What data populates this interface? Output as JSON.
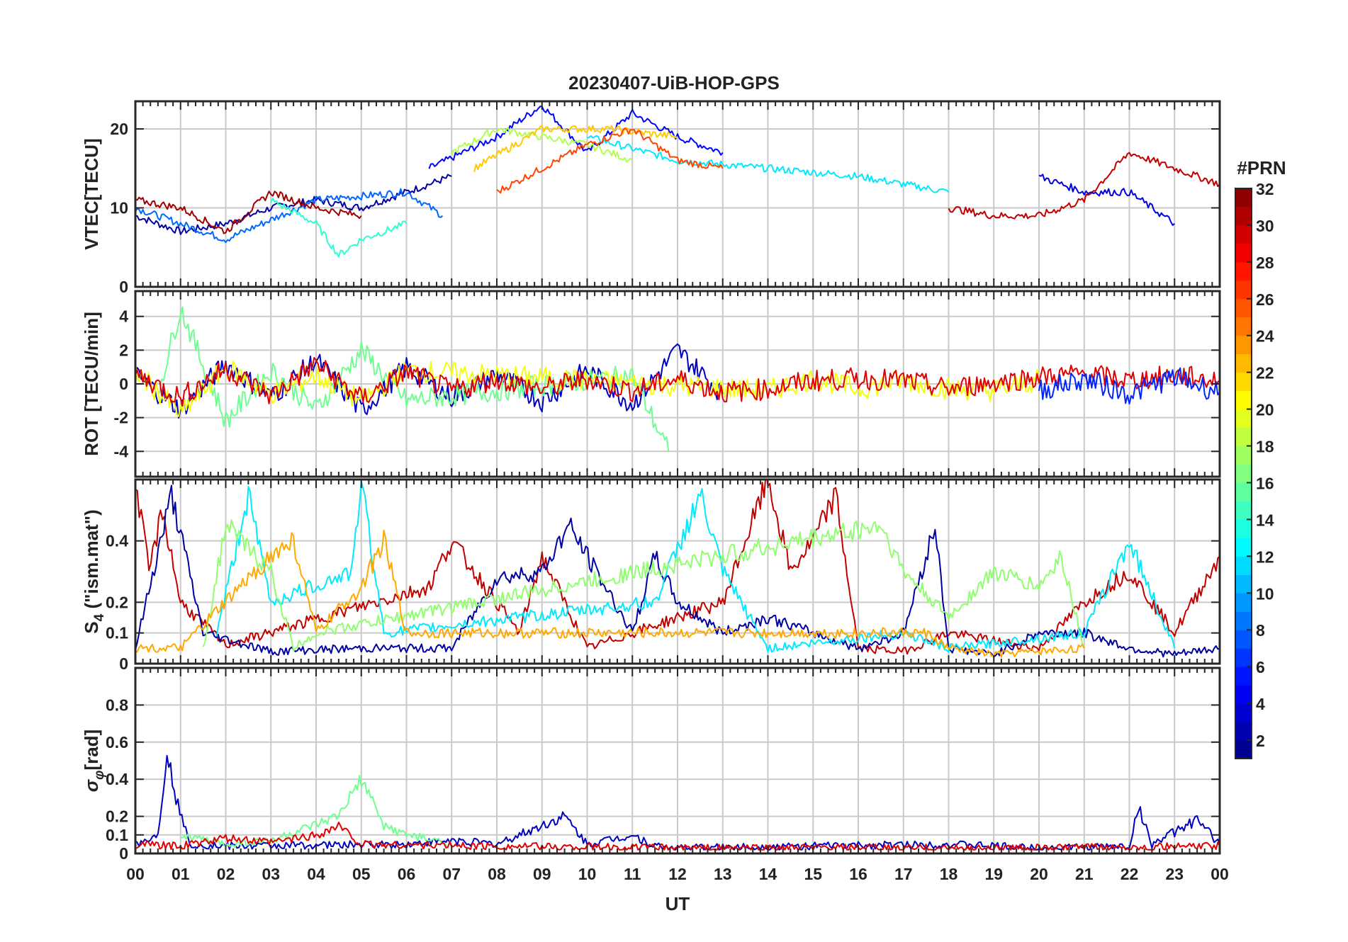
{
  "title": "20230407-UiB-HOP-GPS",
  "colorbar": {
    "title": "#PRN",
    "ticks": [
      "2",
      "4",
      "6",
      "8",
      "10",
      "12",
      "14",
      "16",
      "18",
      "20",
      "22",
      "24",
      "26",
      "28",
      "30",
      "32"
    ],
    "range": [
      1,
      32
    ],
    "colormap": "jet"
  },
  "x_axis": {
    "label": "UT",
    "ticks": [
      "00",
      "01",
      "02",
      "03",
      "04",
      "05",
      "06",
      "07",
      "08",
      "09",
      "10",
      "11",
      "12",
      "13",
      "14",
      "15",
      "16",
      "17",
      "18",
      "19",
      "20",
      "21",
      "22",
      "23",
      "00"
    ],
    "range_hours": [
      0,
      24
    ]
  },
  "chart_data": [
    {
      "type": "line",
      "panel": "vtec",
      "ylabel": "VTEC[TECU]",
      "ylim": [
        0,
        23.5
      ],
      "yticks": [
        "0",
        "10",
        "20"
      ],
      "ytick_values": [
        0,
        10,
        20
      ],
      "series_by": "PRN",
      "series": [
        {
          "prn": 2,
          "x": [
            0,
            1,
            2,
            3,
            4,
            5,
            6,
            7
          ],
          "values": [
            9,
            7,
            8,
            10,
            11,
            10,
            12,
            14
          ]
        },
        {
          "prn": 5,
          "x": [
            6.5,
            8,
            9,
            10,
            11,
            12,
            13
          ],
          "values": [
            15,
            19,
            23,
            17,
            22,
            19,
            17
          ]
        },
        {
          "prn": 8,
          "x": [
            0,
            2,
            4,
            6,
            6.8
          ],
          "values": [
            10,
            6,
            11,
            12,
            9
          ]
        },
        {
          "prn": 12,
          "x": [
            10,
            12,
            14,
            16,
            18
          ],
          "values": [
            19,
            16,
            15,
            14,
            12
          ]
        },
        {
          "prn": 14,
          "x": [
            3,
            4,
            4.5,
            5,
            6
          ],
          "values": [
            11,
            8,
            4,
            6,
            8
          ]
        },
        {
          "prn": 18,
          "x": [
            7,
            8,
            9,
            10,
            11
          ],
          "values": [
            17,
            20,
            19,
            18,
            16
          ]
        },
        {
          "prn": 22,
          "x": [
            7.5,
            9,
            10.5,
            12
          ],
          "values": [
            15,
            20,
            20,
            19
          ]
        },
        {
          "prn": 26,
          "x": [
            8,
            9,
            10,
            11,
            12,
            13
          ],
          "values": [
            12,
            15,
            18,
            20,
            16,
            15
          ]
        },
        {
          "prn": 31,
          "x": [
            0,
            1,
            2,
            3,
            4,
            5
          ],
          "values": [
            11,
            10,
            7,
            12,
            10,
            9
          ]
        },
        {
          "prn": 30,
          "x": [
            18,
            19,
            20,
            21,
            22,
            22.5,
            23,
            24
          ],
          "values": [
            10,
            9,
            9,
            11,
            17,
            16,
            15,
            13
          ]
        },
        {
          "prn": 4,
          "x": [
            20,
            21,
            22,
            22.5,
            23
          ],
          "values": [
            14,
            12,
            12,
            10,
            8
          ]
        }
      ]
    },
    {
      "type": "line",
      "panel": "rot",
      "ylabel": "ROT [TECU/min]",
      "ylim": [
        -5.5,
        5.5
      ],
      "yticks": [
        "-4",
        "-2",
        "0",
        "2",
        "4"
      ],
      "ytick_values": [
        -4,
        -2,
        0,
        2,
        4
      ],
      "series_by": "PRN",
      "series": [
        {
          "prn": 3,
          "x": [
            0,
            1,
            2,
            3,
            4,
            5,
            6,
            7,
            8,
            9,
            10,
            11,
            12,
            13
          ],
          "values": [
            0.5,
            -1.5,
            1.2,
            -0.8,
            1.4,
            -1.6,
            1.0,
            -0.8,
            0.6,
            -1.0,
            0.8,
            -1.2,
            2.0,
            -0.6
          ]
        },
        {
          "prn": 16,
          "x": [
            0.5,
            1,
            2,
            3,
            4,
            5,
            6,
            11,
            11.8
          ],
          "values": [
            -0.5,
            4.5,
            -2.2,
            0.8,
            -1.5,
            2.0,
            -1.0,
            0.5,
            -4.0
          ]
        },
        {
          "prn": 20,
          "x": [
            0,
            1,
            2,
            3,
            4,
            5,
            6,
            14,
            15,
            16,
            17,
            18,
            19,
            20
          ],
          "values": [
            0.8,
            -1.8,
            1.0,
            -0.6,
            0.5,
            -1.0,
            0.8,
            -0.4,
            0.3,
            -0.3,
            0.2,
            -0.3,
            -0.4,
            0.2
          ]
        },
        {
          "prn": 29,
          "x": [
            0,
            1,
            2,
            3,
            4,
            5,
            6,
            7,
            8,
            9,
            10,
            11,
            12,
            13,
            14,
            15,
            16,
            17,
            18,
            19,
            20,
            21,
            22,
            23,
            24
          ],
          "values": [
            0.6,
            -0.8,
            0.9,
            -0.7,
            1.2,
            -0.9,
            0.7,
            -0.4,
            0.3,
            -0.3,
            0.3,
            -0.4,
            0.3,
            -0.5,
            -0.3,
            0.2,
            0.3,
            0.2,
            -0.3,
            0.1,
            0.4,
            0.6,
            0.2,
            0.5,
            0.2
          ]
        },
        {
          "prn": 6,
          "x": [
            20,
            21,
            22,
            23,
            24
          ],
          "values": [
            -0.4,
            0.3,
            -0.6,
            0.4,
            -0.5
          ]
        }
      ]
    },
    {
      "type": "line",
      "panel": "s4",
      "ylabel": "S4 (\"ism.mat\")",
      "ylabel_main": "S",
      "ylabel_sub": "4",
      "ylabel_rest": " (\"ism.mat\")",
      "ylim": [
        0,
        0.6
      ],
      "yticks": [
        "0",
        "0.1",
        "0.2",
        "0.4"
      ],
      "ytick_values": [
        0,
        0.1,
        0.2,
        0.4
      ],
      "series_by": "PRN",
      "series": [
        {
          "prn": 30,
          "x": [
            0,
            0.3,
            0.6,
            1,
            2,
            6.5,
            7,
            8.5,
            9,
            10,
            11,
            13,
            14,
            14.5,
            15,
            15.5,
            16,
            17,
            18,
            20,
            21,
            22,
            23,
            24
          ],
          "values": [
            0.6,
            0.3,
            0.5,
            0.2,
            0.06,
            0.25,
            0.4,
            0.1,
            0.35,
            0.05,
            0.1,
            0.2,
            0.6,
            0.3,
            0.4,
            0.55,
            0.05,
            0.04,
            0.1,
            0.05,
            0.2,
            0.3,
            0.1,
            0.35
          ]
        },
        {
          "prn": 2,
          "x": [
            0,
            0.8,
            1.5,
            3,
            5,
            7,
            8,
            9,
            9.6,
            11,
            11.5,
            12,
            13,
            14,
            15,
            16,
            17,
            17.7,
            18,
            19,
            20,
            21,
            22,
            23,
            24
          ],
          "values": [
            0.05,
            0.55,
            0.1,
            0.04,
            0.05,
            0.05,
            0.28,
            0.3,
            0.45,
            0.1,
            0.35,
            0.2,
            0.1,
            0.15,
            0.1,
            0.05,
            0.1,
            0.45,
            0.05,
            0.03,
            0.1,
            0.1,
            0.05,
            0.03,
            0.05
          ]
        },
        {
          "prn": 12,
          "x": [
            1.8,
            2.5,
            3,
            4.8,
            5,
            5.5,
            11.5,
            12.5,
            13,
            14,
            17,
            18,
            21,
            22,
            23
          ],
          "values": [
            0.1,
            0.55,
            0.2,
            0.3,
            0.6,
            0.1,
            0.2,
            0.55,
            0.3,
            0.05,
            0.1,
            0.05,
            0.1,
            0.4,
            0.05
          ]
        },
        {
          "prn": 17,
          "x": [
            1.5,
            2,
            3,
            3.5,
            4,
            16.5,
            17,
            18,
            19,
            20,
            20.5,
            21
          ],
          "values": [
            0.05,
            0.45,
            0.3,
            0.05,
            0.1,
            0.45,
            0.3,
            0.15,
            0.3,
            0.25,
            0.35,
            0.05
          ]
        },
        {
          "prn": 23,
          "x": [
            0,
            1,
            3,
            3.5,
            4,
            5,
            5.5,
            6,
            17.5,
            18,
            19,
            20,
            21
          ],
          "values": [
            0.05,
            0.05,
            0.35,
            0.4,
            0.1,
            0.25,
            0.4,
            0.1,
            0.1,
            0.05,
            0.03,
            0.04,
            0.05
          ]
        }
      ]
    },
    {
      "type": "line",
      "panel": "sigma_phi",
      "ylabel": "σφ[rad]",
      "ylabel_main": "σ",
      "ylabel_sub": "φ",
      "ylabel_rest": "[rad]",
      "ylim": [
        0,
        1.0
      ],
      "yticks": [
        "0",
        "0.1",
        "0.2",
        "0.4",
        "0.6",
        "0.8"
      ],
      "ytick_values": [
        0,
        0.1,
        0.2,
        0.4,
        0.6,
        0.8
      ],
      "series_by": "PRN",
      "series": [
        {
          "prn": 3,
          "x": [
            0,
            0.5,
            0.7,
            0.9,
            1.2,
            2,
            6,
            7,
            8,
            9.5,
            10,
            11,
            11.5,
            12,
            18,
            20,
            22,
            22.2,
            22.5,
            23.5,
            24
          ],
          "values": [
            0.05,
            0.1,
            0.55,
            0.3,
            0.05,
            0.04,
            0.05,
            0.07,
            0.05,
            0.2,
            0.05,
            0.1,
            0.04,
            0.03,
            0.05,
            0.03,
            0.04,
            0.25,
            0.05,
            0.18,
            0.05
          ]
        },
        {
          "prn": 16,
          "x": [
            1,
            2,
            3,
            4,
            4.5,
            5,
            5.5,
            6,
            7
          ],
          "values": [
            0.1,
            0.05,
            0.07,
            0.15,
            0.2,
            0.4,
            0.15,
            0.1,
            0.05
          ]
        },
        {
          "prn": 29,
          "x": [
            0,
            1,
            2,
            3,
            4,
            4.5,
            5,
            8,
            12,
            16,
            20,
            24
          ],
          "values": [
            0.05,
            0.04,
            0.08,
            0.06,
            0.1,
            0.15,
            0.05,
            0.04,
            0.03,
            0.03,
            0.03,
            0.04
          ]
        }
      ]
    }
  ]
}
